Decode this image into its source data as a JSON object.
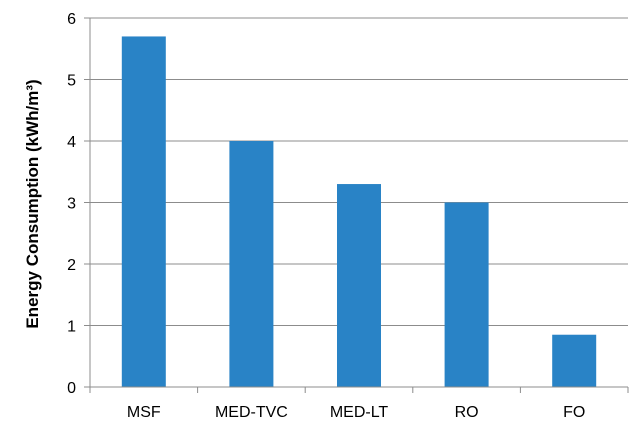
{
  "chart_data": {
    "type": "bar",
    "title": "",
    "xlabel": "",
    "ylabel": "Energy Consumption (kWh/m³)",
    "categories": [
      "MSF",
      "MED-TVC",
      "MED-LT",
      "RO",
      "FO"
    ],
    "values": [
      5.7,
      4.0,
      3.3,
      3.0,
      0.85
    ],
    "ylim": [
      0,
      6
    ],
    "yticks": [
      "0",
      "1",
      "2",
      "3",
      "4",
      "5",
      "6"
    ],
    "grid": true,
    "legend": "none",
    "colors": {
      "bar": "#2983c6",
      "grid": "#8c8c8c",
      "axis": "#8c8c8c"
    }
  }
}
